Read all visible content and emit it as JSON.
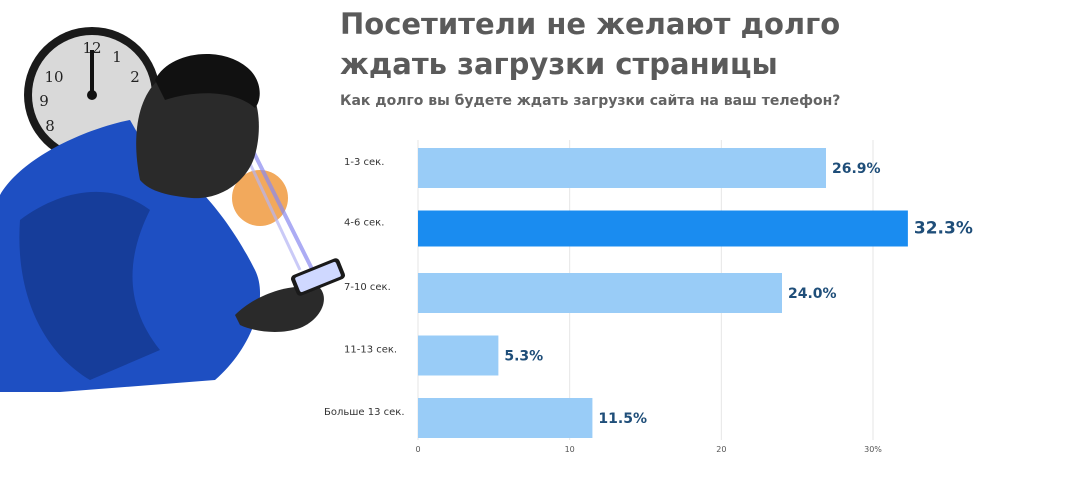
{
  "heading": {
    "line1": "Посетители не желают долго",
    "line2": "ждать загрузки страницы"
  },
  "chart_data": {
    "type": "bar",
    "orientation": "horizontal",
    "title": "Как долго вы будете ждать загрузки сайта на ваш телефон?",
    "categories": [
      "1-3  сек.",
      "4-6  сек.",
      "7-10  сек.",
      "11-13  сек.",
      "Больше  13  сек."
    ],
    "values": [
      26.9,
      32.3,
      24.0,
      5.3,
      11.5
    ],
    "value_labels": [
      "26.9%",
      "32.3%",
      "24.0%",
      "5.3%",
      "11.5%"
    ],
    "highlight_index": 1,
    "xlim": [
      0,
      30
    ],
    "x_ticks": [
      0,
      10,
      20,
      30
    ],
    "x_tick_labels": [
      "0",
      "10",
      "20",
      "30%"
    ],
    "grid": true,
    "colors": {
      "bar": "#99ccf7",
      "highlight": "#1a8cf0",
      "label": "#1f4e79",
      "grid": "#e6e6e6"
    }
  },
  "illustration": {
    "description_icons": [
      "clock-icon",
      "coin-icon",
      "smartphone-icon",
      "person-icon"
    ],
    "clock_numerals": [
      "12",
      "1",
      "2",
      "10",
      "9",
      "8"
    ],
    "colors": {
      "jacket": "#1e4fc2",
      "jacket_dark": "#163d9a",
      "skin": "#2a2a2a",
      "clock_face": "#d9d9d9",
      "coin": "#f2a95c",
      "beam": "#8a8af0"
    }
  }
}
